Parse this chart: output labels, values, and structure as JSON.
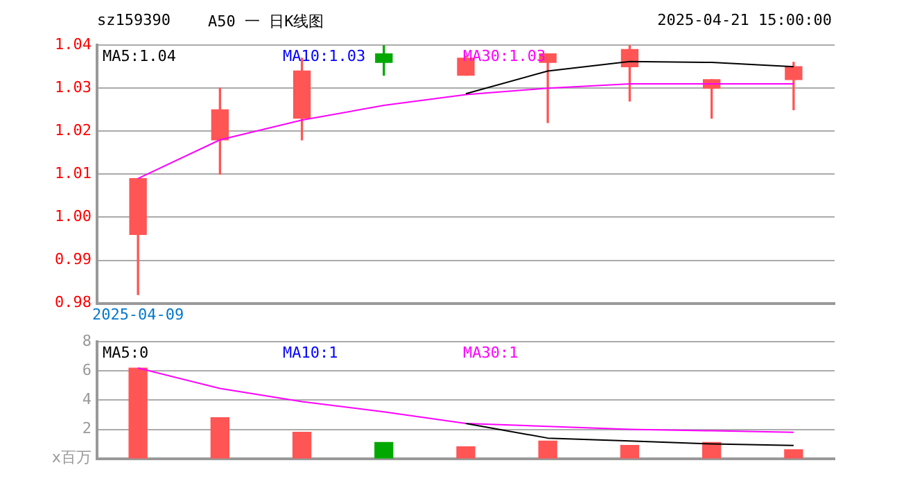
{
  "chart_data": [
    {
      "type": "candlestick",
      "title": "A50 一 日K线图",
      "subtitle": "sz159390",
      "annotations": [
        "2025-04-21 15:00:00"
      ],
      "categories": [
        "2025-04-09",
        null,
        null,
        null,
        null,
        null,
        null,
        null,
        null
      ],
      "ohlc": [
        [
          0.996,
          1.009,
          0.982,
          1.009
        ],
        [
          1.018,
          1.03,
          1.01,
          1.025
        ],
        [
          1.023,
          1.037,
          1.018,
          1.034
        ],
        [
          1.038,
          1.04,
          1.033,
          1.036
        ],
        [
          1.033,
          1.0375,
          1.033,
          1.037
        ],
        [
          1.036,
          1.038,
          1.022,
          1.038
        ],
        [
          1.035,
          1.04,
          1.027,
          1.039
        ],
        [
          1.03,
          1.032,
          1.023,
          1.032
        ],
        [
          1.032,
          1.036,
          1.025,
          1.035
        ]
      ],
      "colors": [
        "#ff5555",
        "#ff5555",
        "#ff5555",
        "#00a800",
        "#ff5555",
        "#ff5555",
        "#ff5555",
        "#ff5555",
        "#ff5555"
      ],
      "series": [
        {
          "name": "MA5:1.04",
          "type": "line",
          "color": "#000000",
          "values": [
            null,
            null,
            null,
            null,
            1.0287,
            1.034,
            1.0362,
            1.036,
            1.035
          ]
        },
        {
          "name": "MA10:1.03",
          "type": "line",
          "color": "#0000ff",
          "values": [
            null,
            null,
            null,
            null,
            null,
            null,
            null,
            null,
            null
          ]
        },
        {
          "name": "MA30:1.03",
          "type": "line",
          "color": "#ff00ff",
          "values": [
            1.009,
            1.018,
            1.0226,
            1.026,
            1.0285,
            1.03,
            1.031,
            1.031,
            1.031
          ]
        }
      ],
      "ylim": [
        0.98,
        1.04
      ],
      "yticks": [
        0.98,
        0.99,
        {
          "value": 1.0,
          "label": "1.00"
        },
        1.01,
        1.02,
        1.03,
        1.04
      ],
      "grid": "y",
      "legend": "top left",
      "marker": "none"
    },
    {
      "type": "bar",
      "ylabel": "x百万",
      "categories": [
        null,
        null,
        null,
        null,
        null,
        null,
        null,
        null,
        null
      ],
      "values": [
        6.2,
        2.8,
        1.8,
        1.1,
        0.8,
        1.2,
        0.9,
        1.1,
        0.6
      ],
      "colors": [
        "#ff5555",
        "#ff5555",
        "#ff5555",
        "#00a800",
        "#ff5555",
        "#ff5555",
        "#ff5555",
        "#ff5555",
        "#ff5555"
      ],
      "series": [
        {
          "name": "MA5:0",
          "type": "line",
          "color": "#000000",
          "values": [
            null,
            null,
            null,
            null,
            2.4,
            1.4,
            1.2,
            1.0,
            0.9
          ]
        },
        {
          "name": "MA10:1",
          "type": "line",
          "color": "#0000ff",
          "values": [
            null,
            null,
            null,
            null,
            null,
            null,
            null,
            null,
            null
          ]
        },
        {
          "name": "MA30:1",
          "type": "line",
          "color": "#ff00ff",
          "values": [
            6.2,
            4.8,
            3.9,
            3.2,
            2.4,
            2.2,
            2.0,
            1.9,
            1.8
          ]
        }
      ],
      "ylim": [
        0,
        8
      ],
      "yticks": [
        2,
        4,
        6,
        8
      ],
      "grid": "y",
      "legend": "top left",
      "marker": "none"
    }
  ]
}
